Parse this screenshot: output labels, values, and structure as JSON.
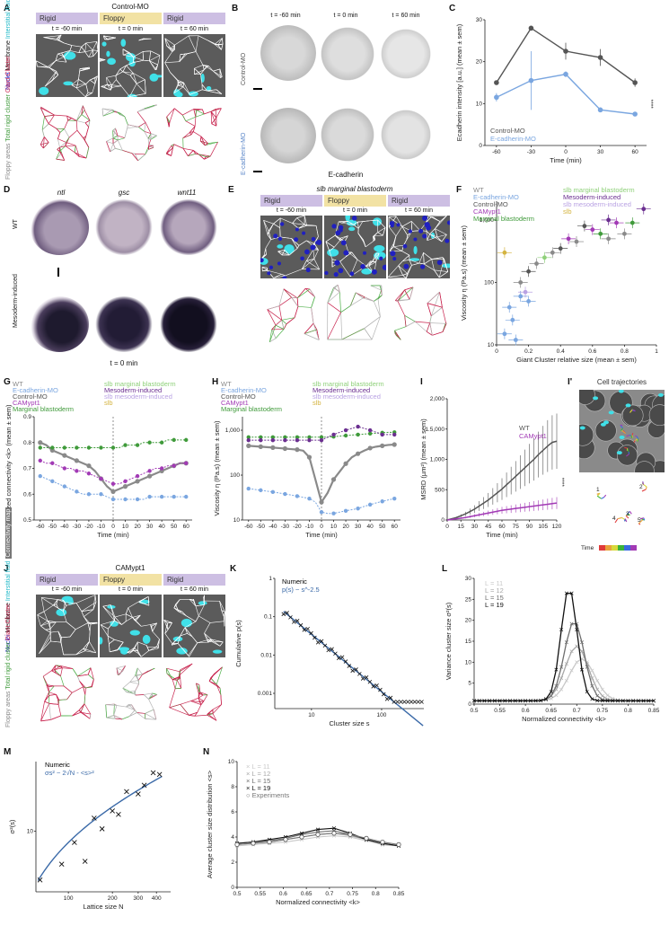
{
  "panels": {
    "A": {
      "label": "A",
      "title": "Control-MO",
      "phases": [
        "Rigid",
        "Floppy",
        "Rigid"
      ],
      "times": [
        "t = -60 min",
        "t = 0 min",
        "t = 60 min"
      ],
      "left_label_top": [
        "Nuclei",
        "Membrane",
        "Interstitial fluid",
        "Connectivity map"
      ],
      "left_label_bottom": [
        "Floppy areas",
        "Total rigid cluster",
        "Giant Cluster"
      ]
    },
    "B": {
      "label": "B",
      "times": [
        "t = -60 min",
        "t = 0 min",
        "t = 60 min"
      ],
      "rows": [
        "Control-MO",
        "E-cadherin-MO"
      ],
      "stain": "E-cadherin"
    },
    "C": {
      "label": "C",
      "ylabel": "Ecadherin intensity [a.u.] (mean ± sem)",
      "xlabel": "Time (min)",
      "legend": [
        "Control-MO",
        "E-cadherin-MO"
      ],
      "sig": "****"
    },
    "D": {
      "label": "D",
      "genes": [
        "ntl",
        "gsc",
        "wnt11"
      ],
      "rows": [
        "WT",
        "Mesoderm-induced"
      ],
      "time": "t = 0 min"
    },
    "E": {
      "label": "E",
      "title": "slb marginal blastoderm",
      "phases": [
        "Rigid",
        "Floppy",
        "Rigid"
      ],
      "times": [
        "t = -60 min",
        "t = 0 min",
        "t = 60 min"
      ]
    },
    "F": {
      "label": "F",
      "ylabel": "Viscosity η (Pa.s) (mean ± sem)",
      "xlabel": "Giant Cluster relative size (mean ± sem)"
    },
    "G": {
      "label": "G",
      "ylabel": "Normalized connectivity <k> (mean ± sem)",
      "xlabel": "Time (min)"
    },
    "H": {
      "label": "H",
      "ylabel": "Viscosity η (Pa.s) (mean ± sem)",
      "xlabel": "Time (min)"
    },
    "I": {
      "label": "I",
      "ylabel": "MSRD (µm²) (mean ± sem)",
      "xlabel": "Time (min)",
      "legend": [
        "WT",
        "CAMypt1"
      ],
      "sig": "****"
    },
    "I2": {
      "label": "I'",
      "title": "Cell trajectories",
      "time_label": "Time",
      "track_ids": [
        "1",
        "2",
        "3",
        "4",
        "5"
      ]
    },
    "J": {
      "label": "J",
      "title": "CAMypt1",
      "phases": [
        "Rigid",
        "Floppy",
        "Rigid"
      ],
      "times": [
        "t = -60 min",
        "t = 0 min",
        "t = 60 min"
      ]
    },
    "K": {
      "label": "K",
      "legend": [
        "Numeric",
        "p(s) ~ s^-2.5"
      ],
      "ylabel": "Cumulative p(s)",
      "xlabel": "Cluster size s"
    },
    "L": {
      "label": "L",
      "legend": [
        "L = 11",
        "L = 12",
        "L = 15",
        "L = 19"
      ],
      "ylabel": "Variance cluster size σ²(s)",
      "xlabel": "Normalized connectivity <k>"
    },
    "M": {
      "label": "M",
      "legend": [
        "Numeric",
        "σs² ~ 2√N - <s>²"
      ],
      "ylabel": "σ²(s)",
      "xlabel": "Lattice size N"
    },
    "N": {
      "label": "N",
      "legend": [
        "L = 11",
        "L = 12",
        "L = 15",
        "L = 19",
        "Experiments"
      ],
      "ylabel": "Average cluster size distribution <s>",
      "xlabel": "Normalized connectivity <k>"
    }
  },
  "groups6": [
    "WT",
    "E-cadherin-MO",
    "Control-MO",
    "CAMypt1",
    "Marginal blastoderm",
    "slb marginal blastoderm",
    "Mesoderm-induced",
    "slb mesoderm-induced",
    "slb"
  ],
  "colors": {
    "WT": "#8a8a8a",
    "ecad": "#7aa6e0",
    "ctrl": "#555555",
    "camypt": "#a23ab5",
    "marg": "#3f9a3a",
    "slbmarg": "#8fd07a",
    "meso": "#6b2f90",
    "slbmeso": "#b9a2e3",
    "slb": "#d4b440",
    "rigid": "#cdbfe3",
    "floppy": "#f2e2a4",
    "giant": "#c8254f",
    "rigidcl": "#4fb04a",
    "fluid": "#40e0e8",
    "nuclei": "#2020c0"
  },
  "chart_data": [
    {
      "id": "C",
      "type": "line",
      "x": [
        -60,
        -30,
        0,
        30,
        60
      ],
      "xlim": [
        -60,
        60
      ],
      "ylim": [
        0,
        30
      ],
      "yticks": [
        0,
        10,
        20,
        30
      ],
      "xticks": [
        -60,
        -30,
        0,
        30,
        60
      ],
      "series": [
        {
          "name": "Control-MO",
          "values": [
            15,
            28,
            22.5,
            21,
            15
          ],
          "err": [
            0.5,
            0.3,
            2,
            2,
            1
          ]
        },
        {
          "name": "E-cadherin-MO",
          "values": [
            11.5,
            15.5,
            17,
            8.5,
            7.5
          ],
          "err": [
            1,
            7,
            0.7,
            0.5,
            0.5
          ]
        }
      ]
    },
    {
      "id": "F",
      "type": "scatter",
      "xlim": [
        0,
        1
      ],
      "ylim_log": [
        10,
        2000
      ],
      "xticks": [
        0,
        0.2,
        0.4,
        0.6,
        0.8,
        1.0
      ],
      "yticks": [
        10,
        100,
        1000
      ],
      "points": [
        {
          "g": "ecad",
          "x": 0.08,
          "y": 40
        },
        {
          "g": "ecad",
          "x": 0.1,
          "y": 25
        },
        {
          "g": "ecad",
          "x": 0.15,
          "y": 60
        },
        {
          "g": "ecad",
          "x": 0.2,
          "y": 50
        },
        {
          "g": "ecad",
          "x": 0.05,
          "y": 15
        },
        {
          "g": "ecad",
          "x": 0.12,
          "y": 12
        },
        {
          "g": "WT",
          "x": 0.35,
          "y": 300
        },
        {
          "g": "WT",
          "x": 0.5,
          "y": 450
        },
        {
          "g": "WT",
          "x": 0.7,
          "y": 500
        },
        {
          "g": "WT",
          "x": 0.8,
          "y": 600
        },
        {
          "g": "WT",
          "x": 0.25,
          "y": 200
        },
        {
          "g": "WT",
          "x": 0.15,
          "y": 100
        },
        {
          "g": "ctrl",
          "x": 0.55,
          "y": 800
        },
        {
          "g": "ctrl",
          "x": 0.4,
          "y": 350
        },
        {
          "g": "ctrl",
          "x": 0.2,
          "y": 150
        },
        {
          "g": "camypt",
          "x": 0.6,
          "y": 700
        },
        {
          "g": "camypt",
          "x": 0.45,
          "y": 500
        },
        {
          "g": "camypt",
          "x": 0.75,
          "y": 900
        },
        {
          "g": "marg",
          "x": 0.85,
          "y": 900
        },
        {
          "g": "marg",
          "x": 0.65,
          "y": 600
        },
        {
          "g": "meso",
          "x": 0.92,
          "y": 1500
        },
        {
          "g": "meso",
          "x": 0.7,
          "y": 1000
        },
        {
          "g": "slbmarg",
          "x": 0.3,
          "y": 250
        },
        {
          "g": "slbmeso",
          "x": 0.18,
          "y": 70
        },
        {
          "g": "slb",
          "x": 0.05,
          "y": 300
        }
      ]
    },
    {
      "id": "G",
      "type": "line",
      "x": [
        -60,
        -55,
        -50,
        -45,
        -40,
        -35,
        -30,
        -25,
        -20,
        -15,
        -10,
        -5,
        0,
        5,
        10,
        15,
        20,
        25,
        30,
        35,
        40,
        45,
        50,
        55,
        60
      ],
      "xlim": [
        -65,
        65
      ],
      "ylim": [
        0.5,
        0.9
      ],
      "yticks": [
        0.5,
        0.6,
        0.7,
        0.8,
        0.9
      ],
      "xticks": [
        -60,
        -50,
        -40,
        -30,
        -20,
        -10,
        0,
        10,
        20,
        30,
        40,
        50,
        60
      ],
      "series": [
        {
          "name": "WT",
          "values": [
            0.8,
            0.79,
            0.77,
            0.76,
            0.75,
            0.74,
            0.73,
            0.72,
            0.71,
            0.69,
            0.66,
            0.63,
            0.61,
            0.62,
            0.63,
            0.64,
            0.65,
            0.66,
            0.67,
            0.68,
            0.69,
            0.7,
            0.71,
            0.72,
            0.72
          ]
        },
        {
          "name": "E-cadherin-MO",
          "values": [
            0.67,
            0.66,
            0.65,
            0.64,
            0.63,
            0.62,
            0.61,
            0.6,
            0.6,
            0.6,
            0.6,
            0.59,
            0.58,
            0.58,
            0.58,
            0.58,
            0.58,
            0.58,
            0.59,
            0.59,
            0.59,
            0.59,
            0.59,
            0.59,
            0.59
          ]
        },
        {
          "name": "Marginal blastoderm",
          "values": [
            0.78,
            0.78,
            0.78,
            0.78,
            0.78,
            0.78,
            0.78,
            0.78,
            0.78,
            0.78,
            0.78,
            0.78,
            0.78,
            0.78,
            0.79,
            0.79,
            0.79,
            0.8,
            0.8,
            0.8,
            0.8,
            0.81,
            0.81,
            0.81,
            0.81
          ]
        },
        {
          "name": "CAMypt1",
          "values": [
            0.73,
            0.72,
            0.72,
            0.71,
            0.7,
            0.7,
            0.69,
            0.69,
            0.68,
            0.67,
            0.66,
            0.65,
            0.64,
            0.64,
            0.65,
            0.66,
            0.67,
            0.68,
            0.69,
            0.7,
            0.7,
            0.71,
            0.71,
            0.72,
            0.72
          ]
        }
      ]
    },
    {
      "id": "H",
      "type": "line",
      "x": [
        -60,
        -55,
        -50,
        -45,
        -40,
        -35,
        -30,
        -25,
        -20,
        -15,
        -10,
        -5,
        0,
        5,
        10,
        15,
        20,
        25,
        30,
        35,
        40,
        45,
        50,
        55,
        60
      ],
      "xlim": [
        -65,
        65
      ],
      "ylim_log": [
        10,
        2000
      ],
      "yticks": [
        10,
        100,
        1000
      ],
      "xticks": [
        -60,
        -50,
        -40,
        -30,
        -20,
        -10,
        0,
        10,
        20,
        30,
        40,
        50,
        60
      ],
      "series": [
        {
          "name": "WT",
          "values": [
            450,
            440,
            430,
            420,
            410,
            400,
            390,
            380,
            370,
            350,
            250,
            80,
            25,
            40,
            80,
            120,
            180,
            250,
            300,
            350,
            400,
            430,
            450,
            470,
            480
          ]
        },
        {
          "name": "E-cadherin-MO",
          "values": [
            50,
            48,
            46,
            44,
            42,
            40,
            38,
            36,
            34,
            32,
            30,
            25,
            15,
            14,
            14,
            15,
            16,
            17,
            18,
            20,
            22,
            24,
            26,
            28,
            30
          ]
        },
        {
          "name": "Marginal blastoderm",
          "values": [
            700,
            700,
            700,
            700,
            700,
            700,
            700,
            700,
            700,
            700,
            700,
            700,
            700,
            700,
            720,
            740,
            760,
            780,
            800,
            820,
            840,
            860,
            880,
            900,
            900
          ]
        },
        {
          "name": "Mesoderm-induced",
          "values": [
            600,
            600,
            600,
            600,
            600,
            600,
            600,
            600,
            600,
            600,
            600,
            600,
            600,
            700,
            800,
            900,
            1000,
            1100,
            1200,
            1100,
            1000,
            900,
            800,
            800,
            800
          ]
        }
      ]
    },
    {
      "id": "I",
      "type": "line",
      "x": [
        0,
        5,
        10,
        15,
        20,
        25,
        30,
        35,
        40,
        45,
        50,
        55,
        60,
        65,
        70,
        75,
        80,
        85,
        90,
        95,
        100,
        105,
        110,
        115,
        120
      ],
      "xlim": [
        0,
        120
      ],
      "ylim": [
        0,
        2000
      ],
      "yticks": [
        0,
        500,
        1000,
        1500,
        2000
      ],
      "xticks": [
        0,
        15,
        30,
        45,
        60,
        75,
        90,
        105,
        120
      ],
      "series": [
        {
          "name": "WT",
          "values": [
            0,
            20,
            40,
            70,
            100,
            140,
            180,
            230,
            280,
            330,
            390,
            450,
            510,
            580,
            650,
            720,
            790,
            860,
            930,
            1000,
            1080,
            1150,
            1220,
            1280,
            1300
          ]
        },
        {
          "name": "CAMypt1",
          "values": [
            0,
            10,
            20,
            30,
            40,
            55,
            70,
            85,
            100,
            115,
            130,
            145,
            160,
            170,
            180,
            190,
            200,
            210,
            220,
            230,
            240,
            250,
            260,
            270,
            280
          ]
        }
      ]
    },
    {
      "id": "K",
      "type": "scatter",
      "xlim_log": [
        3,
        400
      ],
      "ylim_log": [
        0.0004,
        1
      ],
      "xticks": [
        10,
        100
      ],
      "yticks": [
        0.001,
        0.01,
        0.1,
        1
      ]
    },
    {
      "id": "L",
      "type": "line",
      "xlim": [
        0.5,
        0.85
      ],
      "ylim": [
        0,
        30
      ],
      "xticks": [
        0.5,
        0.55,
        0.6,
        0.65,
        0.7,
        0.75,
        0.8,
        0.85
      ],
      "yticks": [
        0,
        5,
        10,
        15,
        20,
        25,
        30
      ],
      "series": [
        {
          "name": "L = 11",
          "peak": 10,
          "center": 0.71,
          "width": 0.035
        },
        {
          "name": "L = 12",
          "peak": 13,
          "center": 0.7,
          "width": 0.032
        },
        {
          "name": "L = 15",
          "peak": 19,
          "center": 0.695,
          "width": 0.027
        },
        {
          "name": "L = 19",
          "peak": 27,
          "center": 0.685,
          "width": 0.022
        }
      ]
    },
    {
      "id": "M",
      "type": "scatter",
      "xlim_log": [
        60,
        500
      ],
      "ylim_log": [
        3,
        40
      ],
      "xticks": [
        100,
        200,
        300,
        400
      ],
      "yticks": [
        10
      ],
      "points": [
        {
          "x": 64,
          "y": 3.8
        },
        {
          "x": 90,
          "y": 5.2
        },
        {
          "x": 110,
          "y": 8
        },
        {
          "x": 130,
          "y": 5.5
        },
        {
          "x": 150,
          "y": 13
        },
        {
          "x": 170,
          "y": 10.5
        },
        {
          "x": 200,
          "y": 15
        },
        {
          "x": 220,
          "y": 14
        },
        {
          "x": 250,
          "y": 22
        },
        {
          "x": 300,
          "y": 21
        },
        {
          "x": 330,
          "y": 25
        },
        {
          "x": 380,
          "y": 32
        },
        {
          "x": 420,
          "y": 31
        }
      ]
    },
    {
      "id": "N",
      "type": "line",
      "xlim": [
        0.5,
        0.85
      ],
      "ylim": [
        0,
        10
      ],
      "xticks": [
        0.5,
        0.55,
        0.6,
        0.65,
        0.7,
        0.75,
        0.8,
        0.85
      ],
      "yticks": [
        0,
        2,
        4,
        6,
        8,
        10
      ],
      "series": [
        {
          "name": "L = 11",
          "values": [
            3.3,
            3.4,
            3.5,
            3.6,
            3.8,
            4.0,
            4.1,
            4.0,
            3.7,
            3.4,
            3.3
          ]
        },
        {
          "name": "L = 12",
          "values": [
            3.4,
            3.5,
            3.6,
            3.8,
            4.0,
            4.2,
            4.3,
            4.1,
            3.8,
            3.4,
            3.3
          ]
        },
        {
          "name": "L = 15",
          "values": [
            3.5,
            3.6,
            3.7,
            3.9,
            4.2,
            4.4,
            4.5,
            4.2,
            3.8,
            3.5,
            3.3
          ]
        },
        {
          "name": "L = 19",
          "values": [
            3.5,
            3.6,
            3.8,
            4.0,
            4.3,
            4.6,
            4.7,
            4.3,
            3.8,
            3.5,
            3.3
          ]
        },
        {
          "name": "Experiments",
          "values": [
            3.4,
            3.5,
            3.6,
            3.8,
            4.0,
            4.2,
            4.3,
            4.2,
            3.9,
            3.6,
            3.4
          ]
        }
      ],
      "x": [
        0.5,
        0.535,
        0.57,
        0.605,
        0.64,
        0.675,
        0.71,
        0.745,
        0.78,
        0.815,
        0.85
      ]
    }
  ]
}
